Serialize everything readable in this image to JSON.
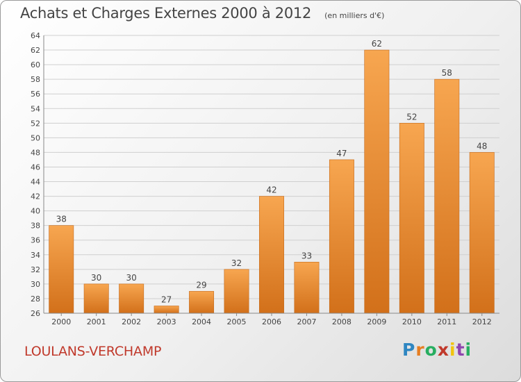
{
  "header": {
    "title": "Achats et Charges Externes 2000 à 2012",
    "subtitle": "(en milliers d'€)"
  },
  "footer": {
    "commune": "LOULANS-VERCHAMP",
    "brand_letters": [
      "P",
      "r",
      "o",
      "x",
      "i",
      "t",
      "i"
    ],
    "brand_colors": [
      "#2e86c1",
      "#e67e22",
      "#27ae60",
      "#c0392b",
      "#f1c40f",
      "#8e44ad",
      "#27ae60"
    ]
  },
  "chart_data": {
    "type": "bar",
    "title": "Achats et Charges Externes 2000 à 2012",
    "subtitle": "(en milliers d'€)",
    "categories": [
      "2000",
      "2001",
      "2002",
      "2003",
      "2004",
      "2005",
      "2006",
      "2007",
      "2008",
      "2009",
      "2010",
      "2011",
      "2012"
    ],
    "values": [
      38,
      30,
      30,
      27,
      29,
      32,
      42,
      33,
      47,
      62,
      52,
      58,
      48
    ],
    "ylim": [
      26,
      64
    ],
    "yticks": [
      26,
      28,
      30,
      32,
      34,
      36,
      38,
      40,
      42,
      44,
      46,
      48,
      50,
      52,
      54,
      56,
      58,
      60,
      62,
      64
    ],
    "grid": true,
    "colors": {
      "bar_top": "#f7a650",
      "bar_bottom": "#d2701a",
      "grid": "#cfcfcf",
      "axis": "#888888"
    }
  }
}
